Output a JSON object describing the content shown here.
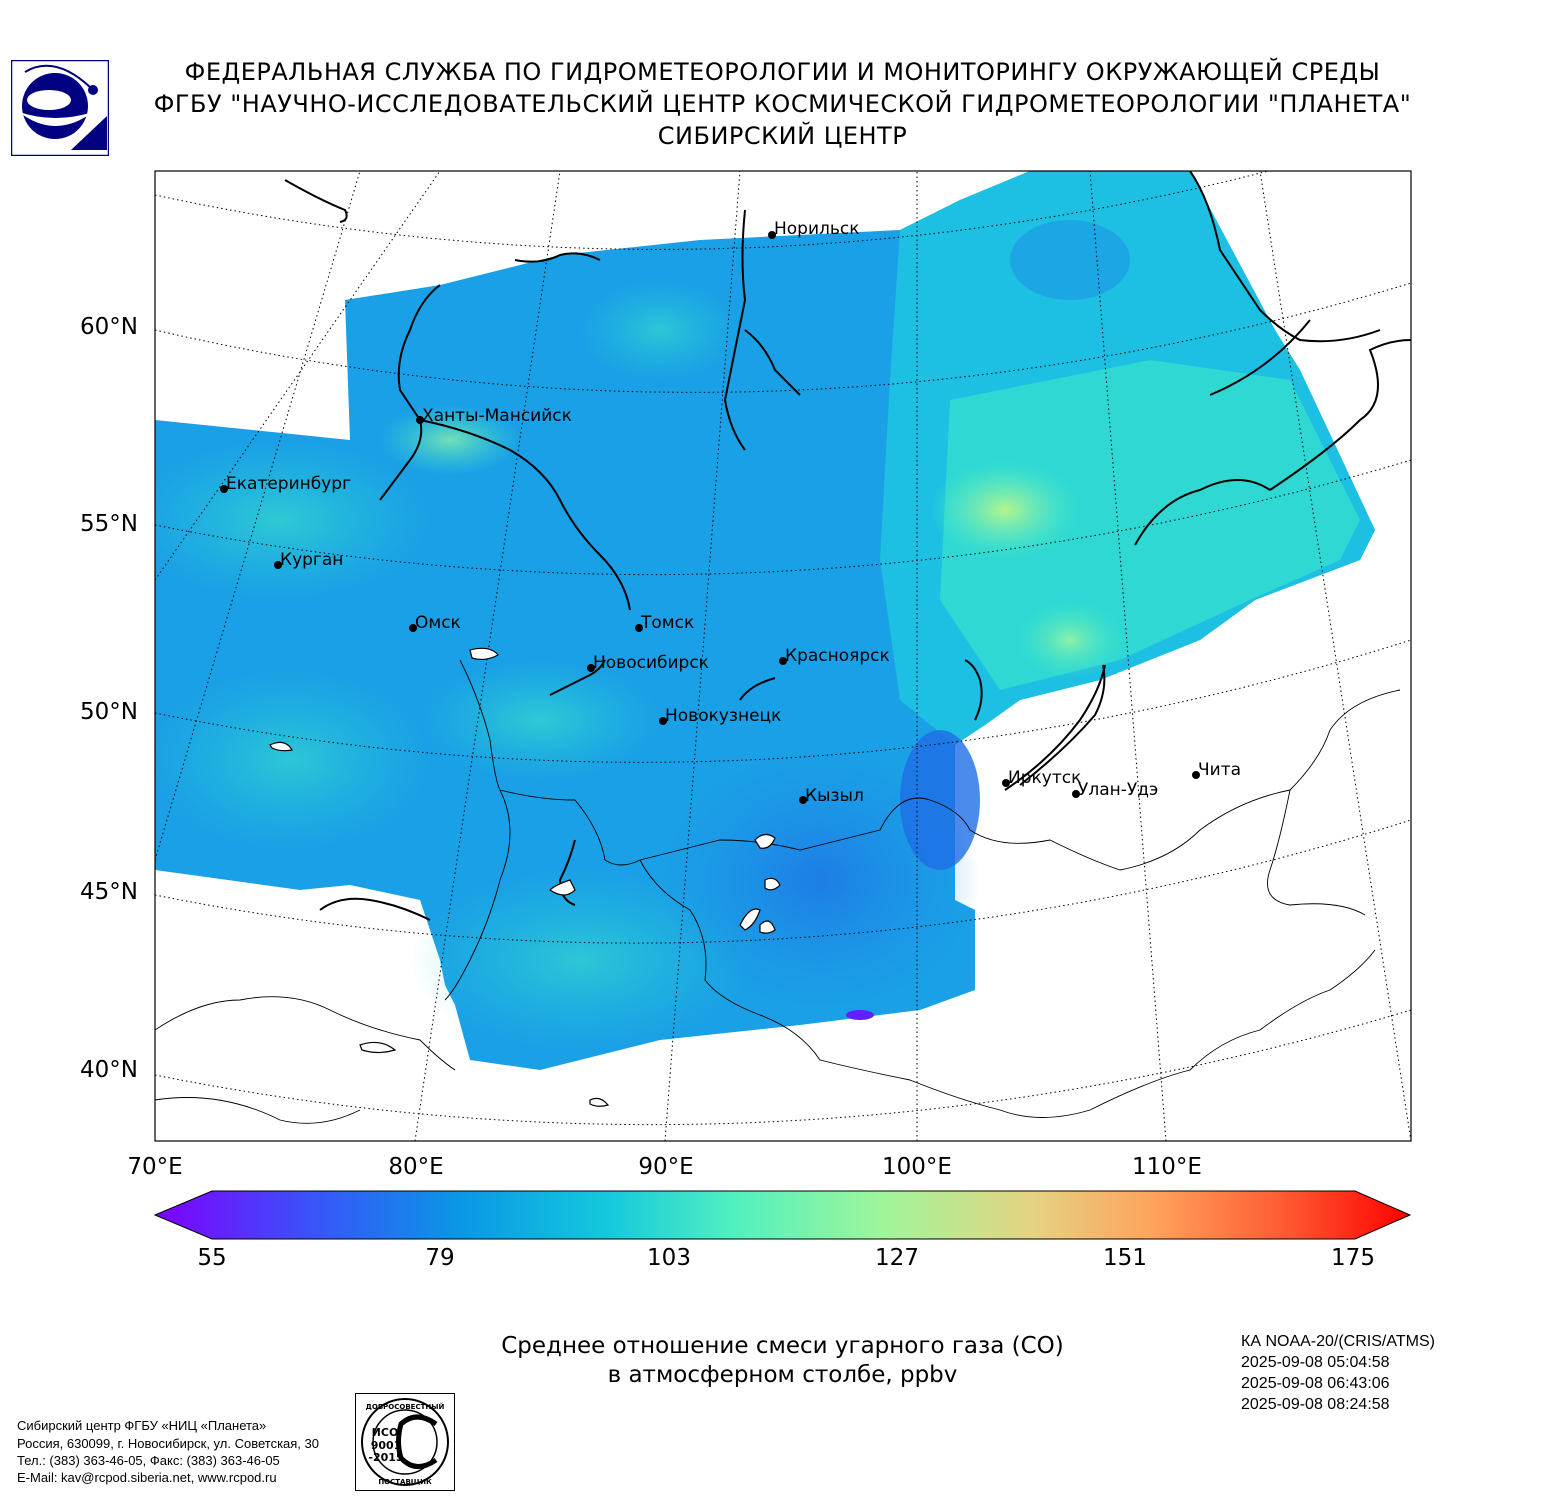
{
  "header": {
    "line1": "ФЕДЕРАЛЬНАЯ СЛУЖБА ПО ГИДРОМЕТЕОРОЛОГИИ И МОНИТОРИНГУ ОКРУЖАЮЩЕЙ СРЕДЫ",
    "line2": "ФГБУ \"НАУЧНО-ИССЛЕДОВАТЕЛЬСКИЙ ЦЕНТР КОСМИЧЕСКОЙ ГИДРОМЕТЕОРОЛОГИИ \"ПЛАНЕТА\"",
    "line3": "СИБИРСКИЙ ЦЕНТР"
  },
  "map": {
    "lat_labels": [
      "60°N",
      "55°N",
      "50°N",
      "45°N",
      "40°N"
    ],
    "lon_labels": [
      "70°E",
      "80°E",
      "90°E",
      "100°E",
      "110°E"
    ],
    "cities": [
      {
        "name": "Норильск"
      },
      {
        "name": "Ханты-Мансийск"
      },
      {
        "name": "Екатеринбург"
      },
      {
        "name": "Курган"
      },
      {
        "name": "Омск"
      },
      {
        "name": "Томск"
      },
      {
        "name": "Новосибирск"
      },
      {
        "name": "Красноярск"
      },
      {
        "name": "Новокузнецк"
      },
      {
        "name": "Кызыл"
      },
      {
        "name": "Иркутск"
      },
      {
        "name": "Улан-Удэ"
      },
      {
        "name": "Чита"
      }
    ],
    "colors": {
      "low": "#7f00ff",
      "mid": "#00b4e6",
      "mid2": "#3ce6c8",
      "high": "#ff0000"
    }
  },
  "colorbar": {
    "min": 55,
    "max": 175,
    "ticks": [
      "55",
      "79",
      "103",
      "127",
      "151",
      "175"
    ],
    "extend": "both"
  },
  "caption": {
    "line1": "Среднее отношение смеси угарного газа (CO)",
    "line2": "в атмосферном столбе, ppbv"
  },
  "satellite": {
    "name": "КА NOAA-20/(CRIS/ATMS)",
    "times": [
      "2025-09-08 05:04:58",
      "2025-09-08 06:43:06",
      "2025-09-08 08:24:58"
    ]
  },
  "footer": {
    "line1": "Сибирский центр ФГБУ «НИЦ «Планета»",
    "line2": "Россия, 630099, г. Новосибирск, ул. Советская, 30",
    "line3": "Тел.: (383) 363-46-05, Факс: (383) 363-46-05",
    "line4": "E-Mail: kav@rcpod.siberia.net, www.rcpod.ru"
  },
  "certificate": {
    "top": "ДОБРОСОВЕСТНЫЙ",
    "l1": "ИСО",
    "l2": "9001",
    "l3": "-2015",
    "bottom": "ПОСТАВЩИК"
  }
}
